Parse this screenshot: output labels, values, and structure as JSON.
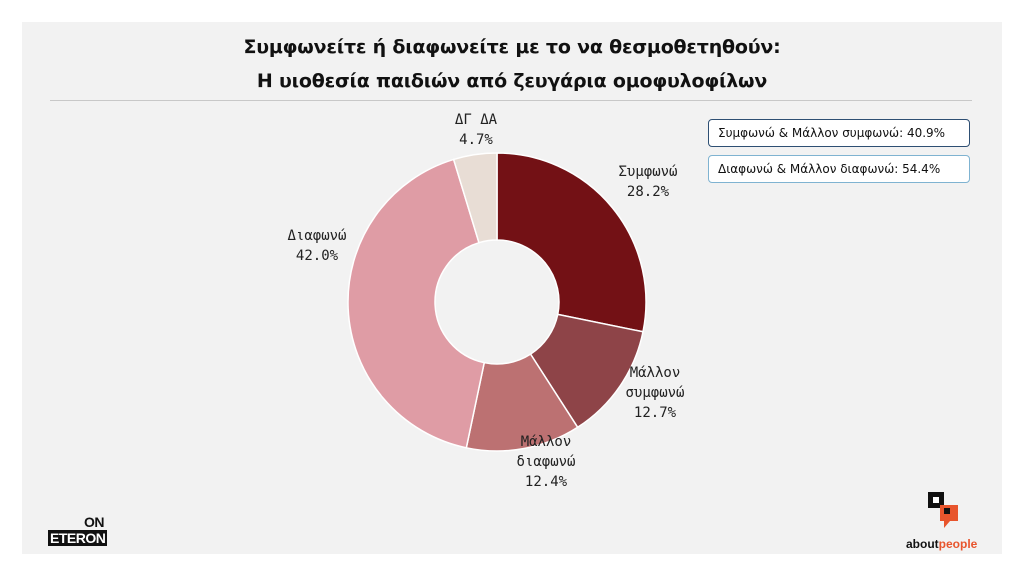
{
  "header": {
    "title_line1": "Συμφωνείτε ή διαφωνείτε με το να θεσμοθετηθούν:",
    "title_line2": "Η υιοθεσία παιδιών από ζευγάρια ομοφυλοφίλων"
  },
  "chart_data": {
    "type": "pie",
    "donut": true,
    "title": "Συμφωνείτε ή διαφωνείτε με το να θεσμοθετηθούν: Η υιοθεσία παιδιών από ζευγάρια ομοφυλοφίλων",
    "slices": [
      {
        "label": "Συμφωνώ",
        "value": 28.2,
        "value_label": "28.2%",
        "color": "#731115"
      },
      {
        "label": "Μάλλον συμφωνώ",
        "value": 12.7,
        "value_label": "12.7%",
        "color": "#8e4448"
      },
      {
        "label": "Μάλλον διαφωνώ",
        "value": 12.4,
        "value_label": "12.4%",
        "color": "#bc7172"
      },
      {
        "label": "Διαφωνώ",
        "value": 42.0,
        "value_label": "42.0%",
        "color": "#df9ca5"
      },
      {
        "label": "ΔΓ ΔΑ",
        "value": 4.7,
        "value_label": "4.7%",
        "color": "#e8ddd5"
      }
    ],
    "start_angle_deg": 0,
    "direction": "clockwise",
    "legend": [
      {
        "text": "Συμφωνώ & Μάλλον συμφωνώ: 40.9%"
      },
      {
        "text": "Διαφωνώ & Μάλλον διαφωνώ: 54.4%"
      }
    ],
    "legend_position": "top-right"
  },
  "logos": {
    "left_on": "ON",
    "left_eteron": "ETERON",
    "right_about": "about",
    "right_people": "people"
  }
}
